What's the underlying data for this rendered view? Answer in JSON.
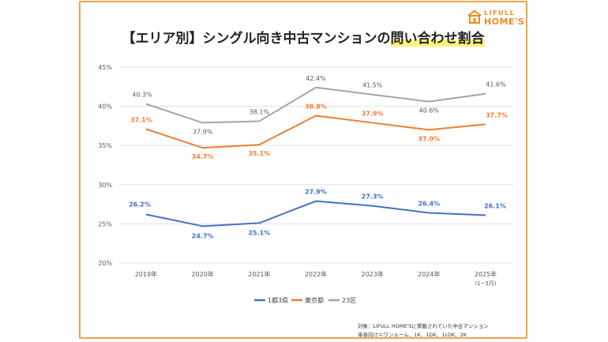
{
  "logo": {
    "line1": "LIFULL",
    "line2": "HOME'S"
  },
  "title": {
    "prefix": "【エリア別】シングル向き中古マンションの",
    "highlight": "問い合わせ割合"
  },
  "notes": {
    "line1": "対象：LIFULL HOME'Sに掲載されていた中古マンション",
    "line2": "単身向け＝ワンルーム、1K、1DK、1LDK、2K"
  },
  "colors": {
    "border": "#f5a04a",
    "series": [
      "#4472c4",
      "#ed7d31",
      "#a5a5a5"
    ]
  },
  "chart_data": {
    "type": "line",
    "categories": [
      "2019年",
      "2020年",
      "2021年",
      "2022年",
      "2023年",
      "2024年",
      "2025年"
    ],
    "category_sublabels": [
      "",
      "",
      "",
      "",
      "",
      "",
      "(1~3月)"
    ],
    "yticks": [
      "20%",
      "25%",
      "30%",
      "35%",
      "40%",
      "45%"
    ],
    "ylim": [
      20,
      45
    ],
    "grid": true,
    "legend_position": "bottom",
    "series": [
      {
        "name": "1都3県",
        "color": "#4472c4",
        "values": [
          26.2,
          24.7,
          25.1,
          27.9,
          27.3,
          26.4,
          26.1
        ],
        "labels": [
          "26.2%",
          "24.7%",
          "25.1%",
          "27.9%",
          "27.3%",
          "26.4%",
          "26.1%"
        ]
      },
      {
        "name": "東京都",
        "color": "#ed7d31",
        "values": [
          37.1,
          34.7,
          35.1,
          38.8,
          37.9,
          37.0,
          37.7
        ],
        "labels": [
          "37.1%",
          "34.7%",
          "35.1%",
          "38.8%",
          "37.9%",
          "37.0%",
          "37.7%"
        ]
      },
      {
        "name": "23区",
        "color": "#a5a5a5",
        "values": [
          40.3,
          37.9,
          38.1,
          42.4,
          41.5,
          40.6,
          41.6
        ],
        "labels": [
          "40.3%",
          "37.9%",
          "38.1%",
          "42.4%",
          "41.5%",
          "40.6%",
          "41.6%"
        ]
      }
    ]
  }
}
